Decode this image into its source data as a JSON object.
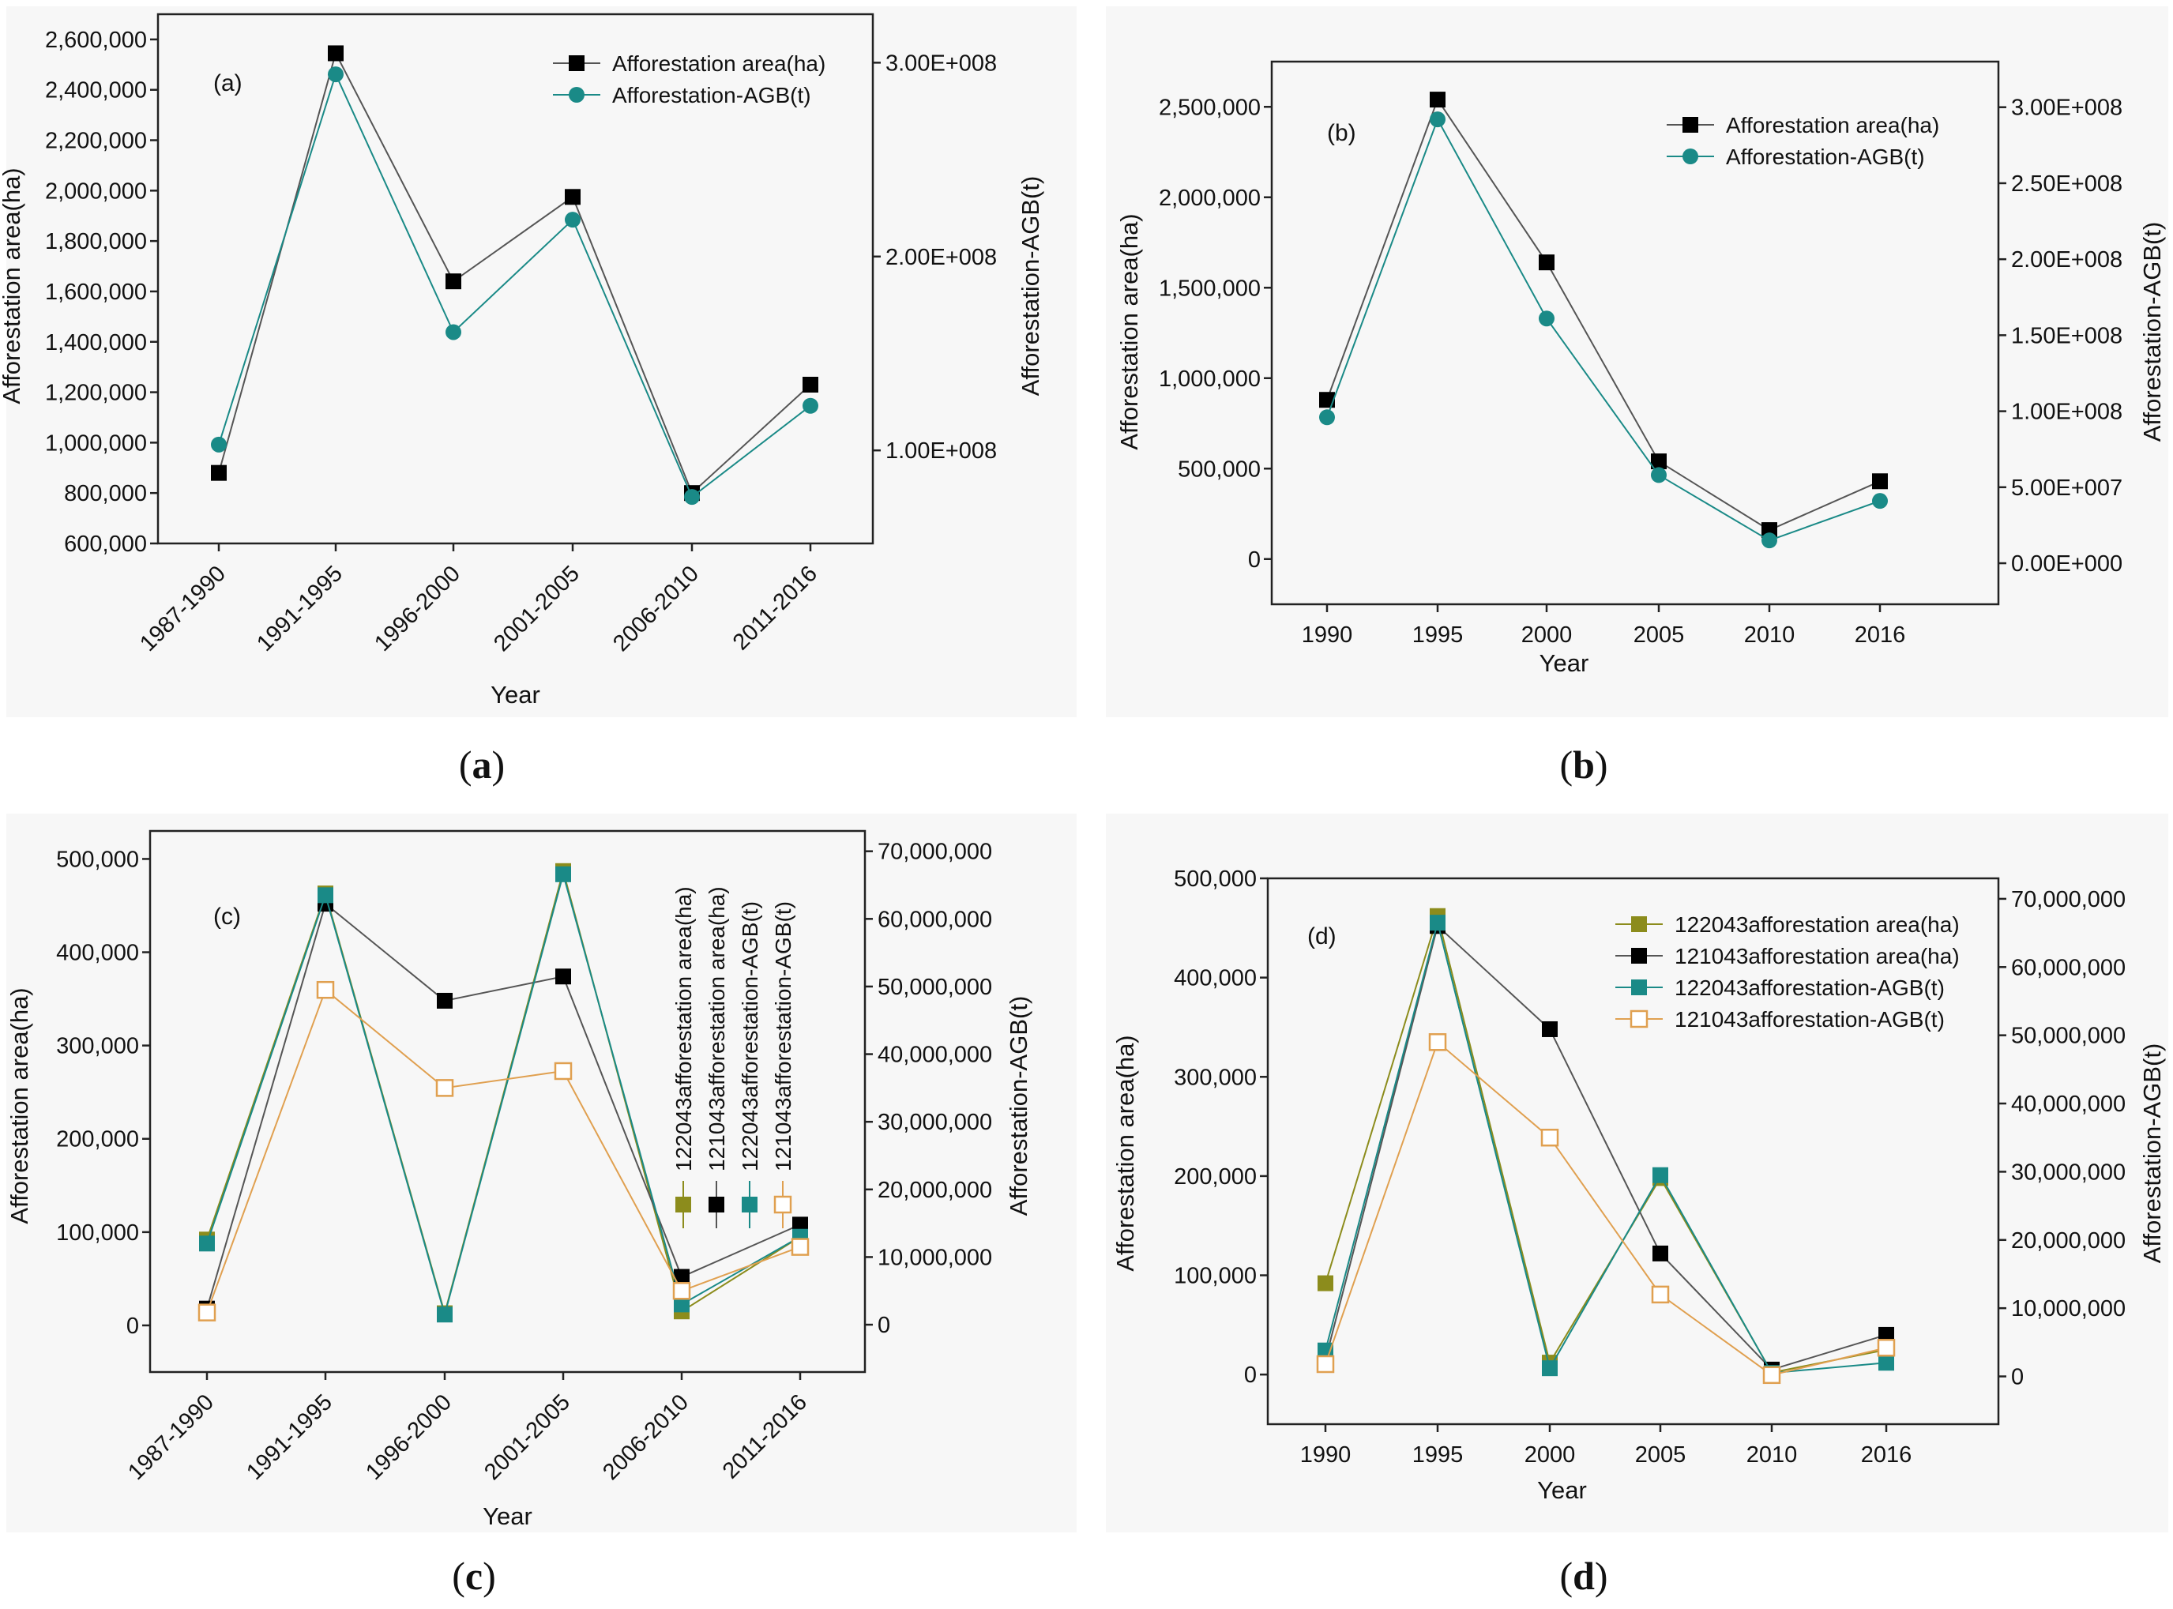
{
  "colors": {
    "black": "#000000",
    "teal": "#1a8a87",
    "olive": "#8c8c1c",
    "orange": "#e0a050",
    "line_black": "#555555"
  },
  "chart_data": [
    {
      "id": "a",
      "type": "line",
      "tag": "(a)",
      "caption": "a",
      "x_tick_labels": [
        "1987-1990",
        "1991-1995",
        "1996-2000",
        "2001-2005",
        "2006-2010",
        "2011-2016"
      ],
      "xlabel": "Year",
      "ylabel_left": "Afforestation area(ha)",
      "ylabel_right": "Afforestation-AGB(t)",
      "yleft_range": [
        600000,
        2700000
      ],
      "yleft_ticks": [
        600000,
        800000,
        1000000,
        1200000,
        1400000,
        1600000,
        1800000,
        2000000,
        2200000,
        2400000,
        2600000
      ],
      "yleft_tick_labels": [
        "600,000",
        "800,000",
        "1,000,000",
        "1,200,000",
        "1,400,000",
        "1,600,000",
        "1,800,000",
        "2,000,000",
        "2,200,000",
        "2,400,000",
        "2,600,000"
      ],
      "yright_range": [
        52000000,
        325000000
      ],
      "yright_ticks": [
        100000000,
        200000000,
        300000000
      ],
      "yright_tick_labels": [
        "1.00E+008",
        "2.00E+008",
        "3.00E+008"
      ],
      "legend_position": "top-right",
      "series": [
        {
          "name": "Afforestation area(ha)",
          "axis": "left",
          "color": "#000000",
          "marker": "square",
          "values": [
            880000,
            2545000,
            1640000,
            1975000,
            800000,
            1230000
          ]
        },
        {
          "name": "Afforestation-AGB(t)",
          "axis": "right",
          "color": "#1a8a87",
          "marker": "circle",
          "values": [
            103000000,
            294000000,
            161000000,
            219000000,
            76000000,
            123000000
          ]
        }
      ]
    },
    {
      "id": "b",
      "type": "line",
      "tag": "(b)",
      "caption": "b",
      "x_tick_labels": [
        "1990",
        "1995",
        "2000",
        "2005",
        "2010",
        "2016"
      ],
      "xlabel": "Year",
      "ylabel_left": "Afforestation area(ha)",
      "ylabel_right": "Afforestation-AGB(t)",
      "yleft_range": [
        -250000,
        2750000
      ],
      "yleft_ticks": [
        0,
        500000,
        1000000,
        1500000,
        2000000,
        2500000
      ],
      "yleft_tick_labels": [
        "0",
        "500,000",
        "1,000,000",
        "1,500,000",
        "2,000,000",
        "2,500,000"
      ],
      "yright_range": [
        -27000000,
        330000000
      ],
      "yright_ticks": [
        0,
        50000000,
        100000000,
        150000000,
        200000000,
        250000000,
        300000000
      ],
      "yright_tick_labels": [
        "0.00E+000",
        "5.00E+007",
        "1.00E+008",
        "1.50E+008",
        "2.00E+008",
        "2.50E+008",
        "3.00E+008"
      ],
      "legend_position": "top-right",
      "series": [
        {
          "name": "Afforestation area(ha)",
          "axis": "left",
          "color": "#000000",
          "marker": "square",
          "values": [
            880000,
            2540000,
            1640000,
            540000,
            160000,
            430000
          ]
        },
        {
          "name": "Afforestation-AGB(t)",
          "axis": "right",
          "color": "#1a8a87",
          "marker": "circle",
          "values": [
            96000000,
            292000000,
            161000000,
            58000000,
            15000000,
            41000000
          ]
        }
      ]
    },
    {
      "id": "c",
      "type": "line",
      "tag": "(c)",
      "caption": "c",
      "x_tick_labels": [
        "1987-1990",
        "1991-1995",
        "1996-2000",
        "2001-2005",
        "2006-2010",
        "2011-2016"
      ],
      "xlabel": "Year",
      "ylabel_left": "Afforestation area(ha)",
      "ylabel_right": "Afforestation-AGB(t)",
      "yleft_range": [
        -50000,
        530000
      ],
      "yleft_ticks": [
        0,
        100000,
        200000,
        300000,
        400000,
        500000
      ],
      "yleft_tick_labels": [
        "0",
        "100,000",
        "200,000",
        "300,000",
        "400,000",
        "500,000"
      ],
      "yright_range": [
        -7000000,
        73000000
      ],
      "yright_ticks": [
        0,
        10000000,
        20000000,
        30000000,
        40000000,
        50000000,
        60000000,
        70000000
      ],
      "yright_tick_labels": [
        "0",
        "10,000,000",
        "20,000,000",
        "30,000,000",
        "40,000,000",
        "50,000,000",
        "60,000,000",
        "70,000,000"
      ],
      "legend_position": "top-right, vertical",
      "series": [
        {
          "name": "122043afforestation area(ha)",
          "axis": "left",
          "color": "#8c8c1c",
          "marker": "square",
          "values": [
            92000,
            463000,
            13000,
            487000,
            15000,
            95000
          ]
        },
        {
          "name": "121043afforestation area(ha)",
          "axis": "left",
          "color": "#000000",
          "marker": "square",
          "values": [
            18000,
            452000,
            348000,
            374000,
            52000,
            108000
          ]
        },
        {
          "name": "122043afforestation-AGB(t)",
          "axis": "right",
          "color": "#1a8a87",
          "marker": "square",
          "values": [
            12000000,
            63500000,
            1500000,
            66600000,
            3000000,
            13000000
          ]
        },
        {
          "name": "121043afforestation-AGB(t)",
          "axis": "right",
          "color": "#e0a050",
          "marker": "open-square",
          "values": [
            1800000,
            49500000,
            35000000,
            37500000,
            5000000,
            11500000
          ]
        }
      ]
    },
    {
      "id": "d",
      "type": "line",
      "tag": "(d)",
      "caption": "d",
      "x_tick_labels": [
        "1990",
        "1995",
        "2000",
        "2005",
        "2010",
        "2016"
      ],
      "xlabel": "Year",
      "ylabel_left": "Afforestation area(ha)",
      "ylabel_right": "Afforestation-AGB(t)",
      "yleft_range": [
        -50000,
        500000
      ],
      "yleft_ticks": [
        0,
        100000,
        200000,
        300000,
        400000,
        500000
      ],
      "yleft_tick_labels": [
        "0",
        "100,000",
        "200,000",
        "300,000",
        "400,000",
        "500,000"
      ],
      "yright_range": [
        -7000000,
        73000000
      ],
      "yright_ticks": [
        0,
        10000000,
        20000000,
        30000000,
        40000000,
        50000000,
        60000000,
        70000000
      ],
      "yright_tick_labels": [
        "0",
        "10,000,000",
        "20,000,000",
        "30,000,000",
        "40,000,000",
        "50,000,000",
        "60,000,000",
        "70,000,000"
      ],
      "legend_position": "top-right",
      "series": [
        {
          "name": "122043afforestation area(ha)",
          "axis": "left",
          "color": "#8c8c1c",
          "marker": "square",
          "values": [
            92000,
            462000,
            12000,
            198000,
            2000,
            25000
          ]
        },
        {
          "name": "121043afforestation area(ha)",
          "axis": "left",
          "color": "#000000",
          "marker": "square",
          "values": [
            15000,
            452000,
            348000,
            122000,
            5000,
            40000
          ]
        },
        {
          "name": "122043afforestation-AGB(t)",
          "axis": "right",
          "color": "#1a8a87",
          "marker": "square",
          "values": [
            3800000,
            66500000,
            1200000,
            29500000,
            500000,
            2000000
          ]
        },
        {
          "name": "121043afforestation-AGB(t)",
          "axis": "right",
          "color": "#e0a050",
          "marker": "open-square",
          "values": [
            1800000,
            49000000,
            35000000,
            12000000,
            200000,
            4200000
          ]
        }
      ]
    }
  ]
}
